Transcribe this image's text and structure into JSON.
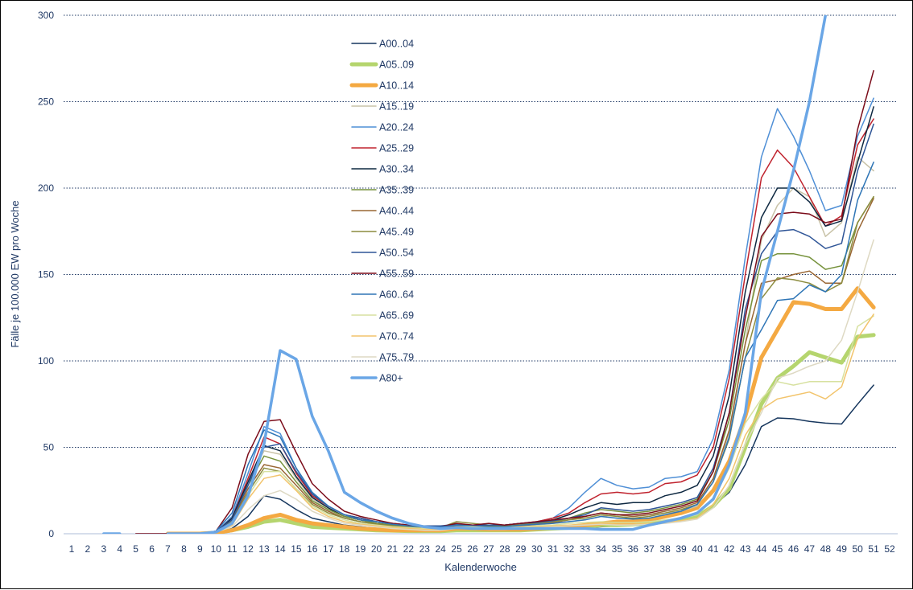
{
  "chart_data": {
    "type": "line",
    "xlabel": "Kalenderwoche",
    "ylabel": "Fälle je 100.000 EW pro Woche",
    "ylim": [
      0,
      300
    ],
    "yticks": [
      0,
      50,
      100,
      150,
      200,
      250,
      300
    ],
    "grid": true,
    "legend_position": "top-center",
    "x": [
      1,
      2,
      3,
      4,
      5,
      6,
      7,
      8,
      9,
      10,
      11,
      12,
      13,
      14,
      15,
      16,
      17,
      18,
      19,
      20,
      21,
      22,
      23,
      24,
      25,
      26,
      27,
      28,
      29,
      30,
      31,
      32,
      33,
      34,
      35,
      36,
      37,
      38,
      39,
      40,
      41,
      42,
      43,
      44,
      45,
      46,
      47,
      48,
      49,
      50,
      51,
      52
    ],
    "series": [
      {
        "name": "A00..04",
        "color": "#17375e",
        "width": 1.5,
        "values": [
          null,
          null,
          null,
          null,
          null,
          null,
          0,
          0,
          0,
          0.5,
          3,
          10,
          22,
          20,
          14,
          9,
          7,
          5,
          4,
          3,
          2.5,
          2,
          2,
          2,
          3,
          2.5,
          2,
          2,
          2,
          2.5,
          3,
          3,
          3.5,
          4,
          4.5,
          5,
          6,
          7,
          8,
          10,
          16,
          24,
          40,
          62,
          67,
          66.5,
          65,
          64,
          63.5,
          75,
          86,
          null
        ]
      },
      {
        "name": "A05..09",
        "color": "#b5d56e",
        "width": 5,
        "values": [
          null,
          null,
          null,
          null,
          null,
          null,
          0,
          0,
          0,
          0.5,
          2,
          4,
          7,
          8,
          6,
          4,
          3.5,
          3,
          2.5,
          2,
          1.8,
          1.6,
          1.5,
          1.5,
          2,
          2,
          2,
          2,
          2,
          2.5,
          3,
          3.5,
          4,
          5,
          5,
          5.5,
          6,
          7,
          8,
          10,
          16,
          26,
          50,
          75,
          90,
          97,
          105,
          102,
          99,
          114,
          115,
          null
        ]
      },
      {
        "name": "A10..14",
        "color": "#f4a942",
        "width": 5,
        "values": [
          null,
          null,
          null,
          null,
          null,
          null,
          0,
          0,
          0,
          0.5,
          2,
          5,
          9,
          11,
          8,
          6,
          5,
          4,
          3,
          2.5,
          2,
          2,
          2,
          2,
          3,
          3,
          2.5,
          2.5,
          2.5,
          3,
          3.5,
          4,
          5,
          6,
          7,
          7,
          8,
          10,
          12,
          15,
          25,
          42,
          68,
          102,
          118,
          134,
          133,
          130,
          130,
          142,
          131,
          null
        ]
      },
      {
        "name": "A15..19",
        "color": "#c9c3a8",
        "width": 1.5,
        "values": [
          null,
          null,
          null,
          null,
          null,
          null,
          0,
          0,
          0,
          1,
          8,
          30,
          48,
          46,
          32,
          20,
          14,
          10,
          8,
          6,
          5,
          4,
          3.5,
          3.5,
          4,
          4,
          4,
          4,
          4.5,
          5,
          6,
          7,
          8,
          10,
          11,
          10,
          11,
          12,
          13,
          16,
          32,
          58,
          110,
          170,
          190,
          200,
          195,
          172,
          180,
          218,
          210,
          null
        ]
      },
      {
        "name": "A20..24",
        "color": "#4f8fd6",
        "width": 1.5,
        "values": [
          null,
          null,
          null,
          null,
          null,
          null,
          0,
          0,
          0,
          1,
          10,
          35,
          62,
          58,
          38,
          22,
          16,
          11,
          9,
          7,
          6,
          5,
          4,
          4,
          5,
          5,
          5,
          5,
          6,
          7,
          9,
          15,
          24,
          32,
          28,
          26,
          27,
          32,
          33,
          36,
          55,
          95,
          160,
          218,
          246,
          230,
          210,
          187,
          190,
          230,
          252,
          null
        ]
      },
      {
        "name": "A25..29",
        "color": "#c0232e",
        "width": 1.5,
        "values": [
          null,
          null,
          null,
          null,
          null,
          null,
          0,
          0,
          0,
          1,
          9,
          32,
          56,
          52,
          35,
          22,
          16,
          11,
          9,
          7,
          6,
          5,
          4,
          4,
          5,
          5,
          5,
          5,
          6,
          7,
          9,
          12,
          18,
          23,
          24,
          23,
          24,
          29,
          30,
          34,
          50,
          90,
          150,
          206,
          222,
          212,
          195,
          178,
          184,
          225,
          240,
          null
        ]
      },
      {
        "name": "A30..34",
        "color": "#0e2841",
        "width": 1.5,
        "values": [
          null,
          null,
          null,
          null,
          null,
          null,
          0,
          0,
          0,
          1,
          9,
          30,
          51,
          48,
          33,
          21,
          15,
          10,
          8,
          6,
          5,
          4.5,
          4,
          4,
          5,
          5,
          5,
          5,
          6,
          6.5,
          8,
          11,
          15,
          18,
          17,
          18,
          18,
          22,
          24,
          28,
          45,
          80,
          140,
          183,
          200,
          200,
          192,
          178,
          181,
          215,
          247,
          null
        ]
      },
      {
        "name": "A35..39",
        "color": "#76923c",
        "width": 1.5,
        "values": [
          null,
          null,
          null,
          null,
          null,
          null,
          0,
          0,
          0,
          1,
          8,
          28,
          45,
          42,
          30,
          19,
          14,
          10,
          8,
          6,
          5,
          4.5,
          4,
          4,
          5,
          5,
          4.5,
          4.5,
          5,
          6,
          7,
          9,
          12,
          14,
          13,
          12,
          13,
          15,
          17,
          20,
          36,
          66,
          118,
          158,
          162,
          162,
          160,
          153,
          155,
          180,
          195,
          null
        ]
      },
      {
        "name": "A40..44",
        "color": "#996633",
        "width": 1.5,
        "values": [
          null,
          null,
          null,
          null,
          null,
          null,
          0,
          0,
          0,
          1,
          7,
          26,
          40,
          38,
          28,
          18,
          13,
          9,
          7,
          5.5,
          4.5,
          4,
          3.5,
          3.5,
          4.5,
          4.5,
          4,
          4,
          4.5,
          5.5,
          6.5,
          8,
          10,
          12,
          11,
          10,
          11,
          13,
          15,
          18,
          32,
          60,
          110,
          145,
          147,
          150,
          152,
          145,
          145,
          175,
          194,
          null
        ]
      },
      {
        "name": "A45..49",
        "color": "#8c8c3e",
        "width": 1.5,
        "values": [
          null,
          null,
          null,
          null,
          null,
          null,
          0,
          0,
          0,
          1,
          7,
          24,
          38,
          36,
          26,
          17,
          12,
          9,
          7,
          5.5,
          4.5,
          4,
          3.5,
          3.5,
          7,
          6,
          5,
          5,
          5.5,
          6,
          7,
          8,
          9,
          11,
          10,
          9,
          10,
          12,
          14,
          17,
          30,
          55,
          102,
          136,
          148,
          147,
          145,
          140,
          145,
          180,
          195,
          null
        ]
      },
      {
        "name": "A50..54",
        "color": "#2f5597",
        "width": 1.5,
        "values": [
          null,
          null,
          null,
          null,
          null,
          null,
          0,
          0,
          0,
          1.5,
          8,
          28,
          50,
          52,
          36,
          23,
          16,
          11,
          9,
          7,
          6,
          5,
          4.5,
          4.5,
          5.5,
          5,
          5,
          5,
          6,
          6.5,
          7.5,
          9,
          11,
          15,
          14,
          13,
          14,
          16,
          18,
          21,
          38,
          70,
          130,
          162,
          175,
          176,
          172,
          165,
          168,
          210,
          237,
          null
        ]
      },
      {
        "name": "A55..59",
        "color": "#7b0c1a",
        "width": 1.5,
        "values": [
          null,
          null,
          null,
          null,
          0,
          0,
          0,
          0,
          0,
          1.5,
          15,
          46,
          65,
          66,
          47,
          29,
          20,
          13,
          10,
          8,
          6,
          5,
          4,
          4,
          6,
          5,
          6,
          5,
          6,
          7,
          8,
          9,
          10,
          12,
          11,
          11,
          12,
          14,
          16,
          19,
          36,
          70,
          125,
          172,
          185,
          186,
          185,
          180,
          182,
          234,
          268,
          null
        ]
      },
      {
        "name": "A60..64",
        "color": "#2e75b6",
        "width": 1.5,
        "values": [
          null,
          null,
          null,
          null,
          null,
          null,
          0,
          0,
          0,
          1.5,
          12,
          40,
          60,
          56,
          38,
          24,
          16,
          11,
          8,
          7,
          5.5,
          4.5,
          4,
          4,
          5,
          4.5,
          4,
          4,
          5,
          5.5,
          6,
          7,
          8,
          10,
          9,
          8.5,
          9,
          11,
          13,
          17,
          30,
          56,
          102,
          118,
          135,
          136,
          144,
          140,
          150,
          193,
          215,
          null
        ]
      },
      {
        "name": "A65..69",
        "color": "#d7e1a0",
        "width": 1.5,
        "values": [
          null,
          null,
          null,
          null,
          null,
          null,
          0,
          0,
          0,
          1,
          6,
          22,
          36,
          36,
          26,
          16,
          11,
          8,
          6,
          5,
          4,
          3.5,
          3,
          3,
          4,
          4,
          3.5,
          3.5,
          4,
          4.5,
          5,
          6,
          6.5,
          7,
          6.5,
          6.5,
          7,
          8,
          9,
          11,
          20,
          38,
          64,
          78,
          88,
          86,
          88,
          88,
          88,
          120,
          126,
          null
        ]
      },
      {
        "name": "A70..74",
        "color": "#f2c46c",
        "width": 1.5,
        "values": [
          null,
          null,
          null,
          null,
          null,
          null,
          0,
          0,
          0,
          1,
          5,
          20,
          32,
          34,
          25,
          15,
          10,
          7,
          5.5,
          4.5,
          3.5,
          3,
          2.5,
          2.5,
          3.5,
          3.5,
          3,
          3,
          3.5,
          4,
          4.5,
          5,
          5.5,
          6,
          5.5,
          5.5,
          6,
          6.5,
          7.5,
          9,
          17,
          32,
          57,
          72,
          78,
          80,
          82,
          78,
          85,
          113,
          127,
          null
        ]
      },
      {
        "name": "A75..79",
        "color": "#ded9c3",
        "width": 1.5,
        "values": [
          null,
          null,
          null,
          null,
          null,
          null,
          0,
          0,
          0,
          1,
          4,
          14,
          22,
          25,
          20,
          13,
          9,
          6,
          5,
          4,
          3,
          2.5,
          2,
          2,
          3,
          3,
          2.5,
          2.5,
          3,
          3.5,
          4,
          4.5,
          5,
          5.5,
          5,
          5,
          5.5,
          6,
          7,
          8.5,
          15,
          28,
          52,
          70,
          90,
          93,
          97,
          100,
          112,
          140,
          170,
          null
        ]
      },
      {
        "name": "A80+",
        "color": "#6aa6e6",
        "width": 3.5,
        "values": [
          null,
          null,
          0,
          0,
          null,
          null,
          0,
          0,
          0,
          1,
          6,
          22,
          52,
          106,
          101,
          68,
          48,
          24,
          18,
          13,
          9,
          6,
          4,
          3,
          3.5,
          3,
          3,
          3,
          3,
          3,
          3,
          3,
          3,
          2.5,
          2.5,
          2.5,
          5,
          7,
          9,
          12,
          20,
          40,
          70,
          140,
          175,
          210,
          250,
          300,
          null,
          null,
          null,
          null
        ]
      }
    ]
  }
}
